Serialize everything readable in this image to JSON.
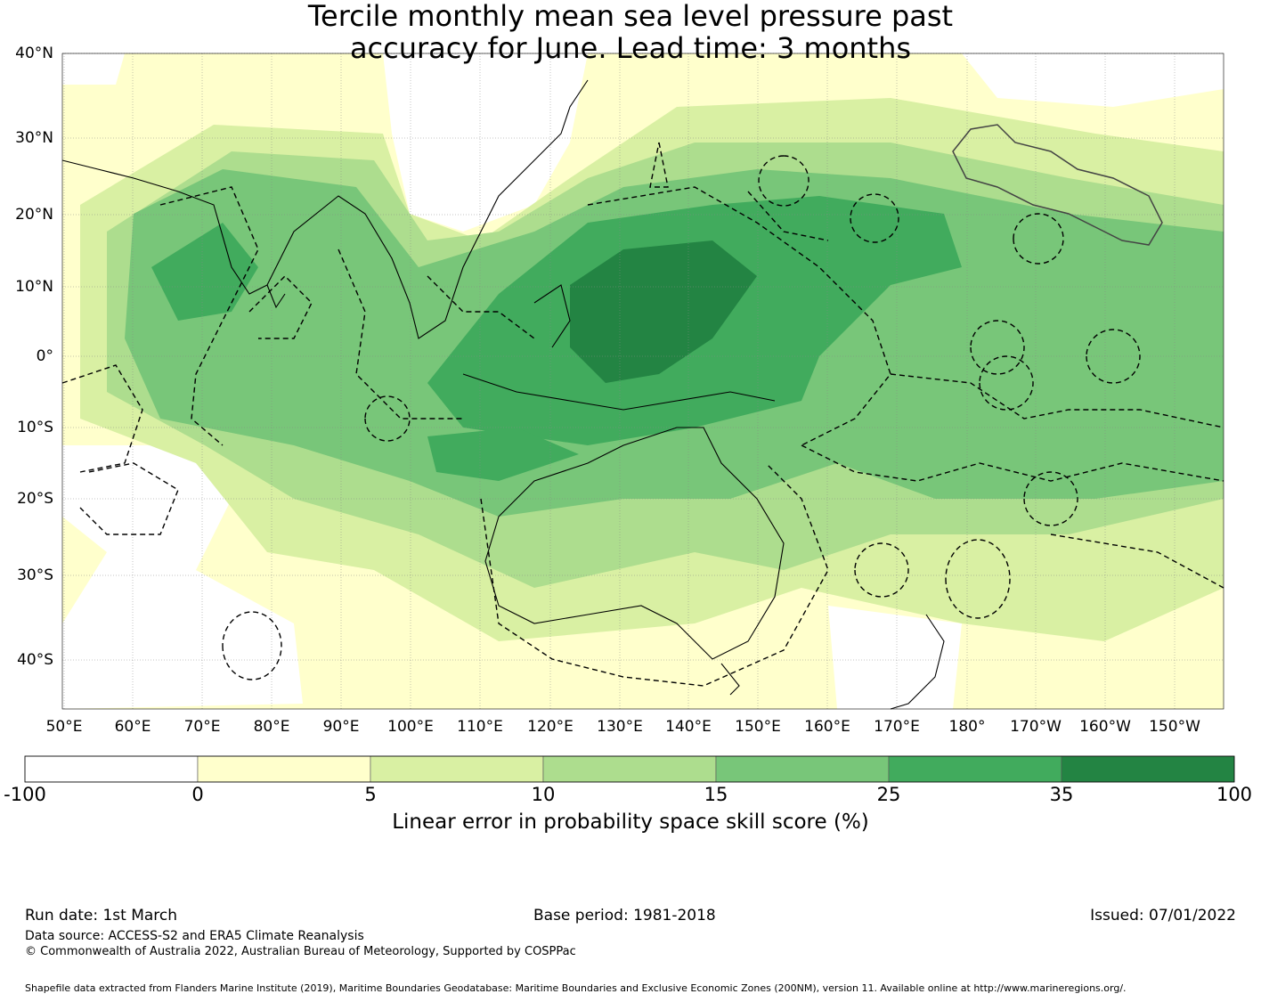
{
  "title_line1": "Tercile monthly mean sea level pressure past",
  "title_line2": "accuracy for June. Lead time: 3 months",
  "lat_labels": [
    "40°N",
    "30°N",
    "20°N",
    "10°N",
    "0°",
    "10°S",
    "20°S",
    "30°S",
    "40°S"
  ],
  "lon_labels": [
    "50°E",
    "60°E",
    "70°E",
    "80°E",
    "90°E",
    "100°E",
    "110°E",
    "120°E",
    "130°E",
    "140°E",
    "150°E",
    "160°E",
    "170°E",
    "180°",
    "170°W",
    "160°W",
    "150°W"
  ],
  "colorbar": {
    "ticks": [
      "-100",
      "0",
      "5",
      "10",
      "15",
      "25",
      "35",
      "100"
    ],
    "colors": [
      "#ffffff",
      "#ffffcc",
      "#d9f0a3",
      "#addd8e",
      "#78c679",
      "#41ab5d",
      "#238443"
    ],
    "label": "Linear error in probability space skill score (%)"
  },
  "footer": {
    "run_date": "Run date: 1st March",
    "base_period": "Base period: 1981-2018",
    "issued": "Issued: 07/01/2022",
    "data_source": "Data source: ACCESS-S2 and ERA5 Climate Reanalysis",
    "copyright": "© Commonwealth of Australia 2022, Australian Bureau of Meteorology, Supported by COSPPac",
    "shapefile": "Shapefile data extracted from Flanders Marine Institute (2019), Maritime Boundaries Geodatabase: Maritime Boundaries and Exclusive Economic Zones (200NM), version 11. Available online at http://www.marineregions.org/."
  }
}
